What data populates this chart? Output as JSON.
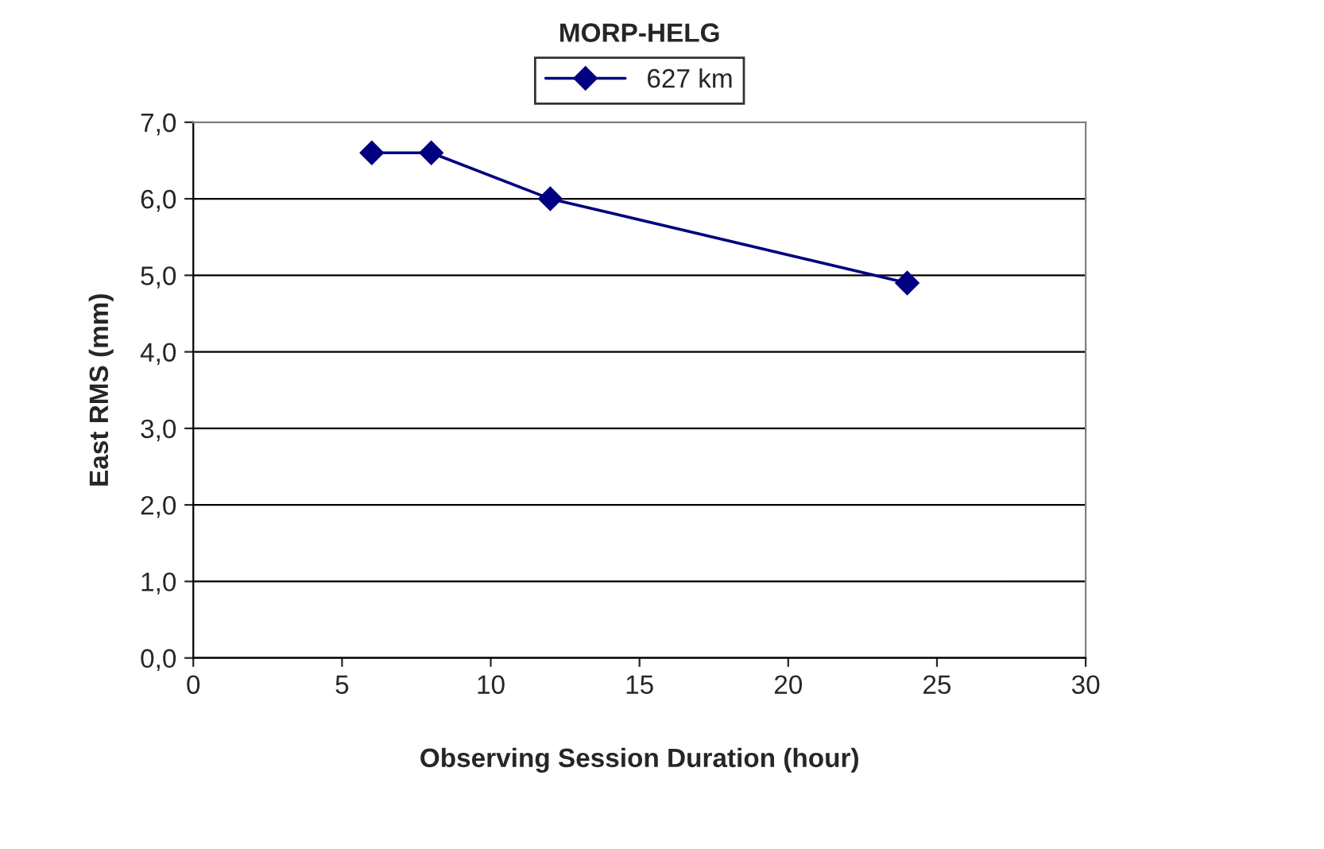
{
  "chart_data": {
    "type": "line",
    "title": "MORP-HELG",
    "xlabel": "Observing Session Duration (hour)",
    "ylabel": "East RMS (mm)",
    "x": [
      6,
      8,
      12,
      24
    ],
    "series": [
      {
        "name": "627 km",
        "color": "#000080",
        "values": [
          6.6,
          6.6,
          6.0,
          4.9
        ]
      }
    ],
    "xlim": [
      0,
      30
    ],
    "xticks": [
      0,
      5,
      10,
      15,
      20,
      25,
      30
    ],
    "ylim": [
      0,
      7
    ],
    "yticks": [
      {
        "value": 0,
        "label": "0,0"
      },
      {
        "value": 1,
        "label": "1,0"
      },
      {
        "value": 2,
        "label": "2,0"
      },
      {
        "value": 3,
        "label": "3,0"
      },
      {
        "value": 4,
        "label": "4,0"
      },
      {
        "value": 5,
        "label": "5,0"
      },
      {
        "value": 6,
        "label": "6,0"
      },
      {
        "value": 7,
        "label": "7,0"
      }
    ],
    "grid": "y",
    "legend": "top",
    "marker": "diamond",
    "line_style": "solid"
  }
}
